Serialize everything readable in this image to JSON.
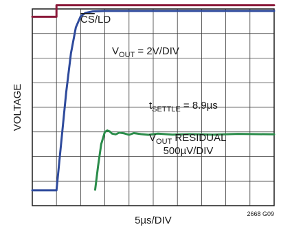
{
  "chart_data": {
    "type": "line",
    "xlabel": "5µs/DIV",
    "ylabel": "VOLTAGE",
    "figure_id": "2668 G09",
    "grid": true,
    "x_divisions": 10,
    "y_divisions": 8,
    "xlim": [
      0,
      10
    ],
    "ylim": [
      0,
      8
    ],
    "annotations": {
      "cs_ld": {
        "over": "CS",
        "rest": "/LD"
      },
      "vout": {
        "main": "V",
        "sub": "OUT",
        "rest": " = 2V/DIV"
      },
      "tsettle": {
        "main": "t",
        "sub": "SETTLE",
        "rest": " = 8.9µs"
      },
      "residual_line1": {
        "main": "V",
        "sub": "OUT",
        "rest": " RESIDUAL"
      },
      "residual_line2": "500µV/DIV"
    },
    "series": [
      {
        "key": "cs_ld",
        "color": "#8b1a3a",
        "x": [
          0,
          1,
          1,
          10
        ],
        "y": [
          7.68,
          7.68,
          8.15,
          8.15
        ]
      },
      {
        "key": "vout",
        "color": "#2e4a9c",
        "x": [
          0,
          1.0,
          1.2,
          1.4,
          1.6,
          1.8,
          2.0,
          2.2,
          2.5,
          3.0,
          4.0,
          10
        ],
        "y": [
          0.62,
          0.62,
          2.6,
          4.6,
          6.2,
          7.25,
          7.7,
          7.84,
          7.9,
          7.92,
          7.92,
          7.92
        ]
      },
      {
        "key": "residual",
        "color": "#2a8c4a",
        "x": [
          2.6,
          2.72,
          2.85,
          3.0,
          3.1,
          3.2,
          3.3,
          3.45,
          3.6,
          3.8,
          4.0,
          4.2,
          4.5,
          4.8,
          5.2,
          5.8,
          6.5,
          7.5,
          8.5,
          10
        ],
        "y": [
          0.65,
          1.6,
          2.5,
          3.0,
          3.06,
          3.02,
          2.93,
          2.9,
          2.97,
          2.94,
          2.88,
          2.95,
          2.91,
          2.88,
          2.93,
          2.89,
          2.91,
          2.89,
          2.92,
          2.9
        ]
      }
    ]
  }
}
